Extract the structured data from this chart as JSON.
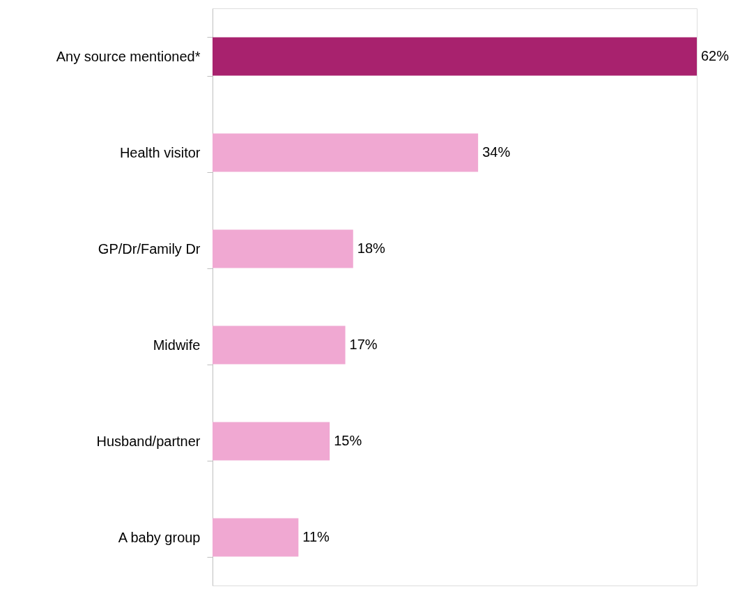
{
  "chart_data": {
    "type": "bar",
    "orientation": "horizontal",
    "categories": [
      "Any source mentioned*",
      "Health visitor",
      "GP/Dr/Family Dr",
      "Midwife",
      "Husband/partner",
      "A baby group"
    ],
    "values": [
      62,
      34,
      18,
      17,
      15,
      11
    ],
    "colors": [
      "#a8226e",
      "#f0a8d2",
      "#f0a8d2",
      "#f0a8d2",
      "#f0a8d2",
      "#f0a8d2"
    ],
    "value_labels": [
      "62%",
      "34%",
      "18%",
      "17%",
      "15%",
      "11%"
    ],
    "grid": false
  }
}
